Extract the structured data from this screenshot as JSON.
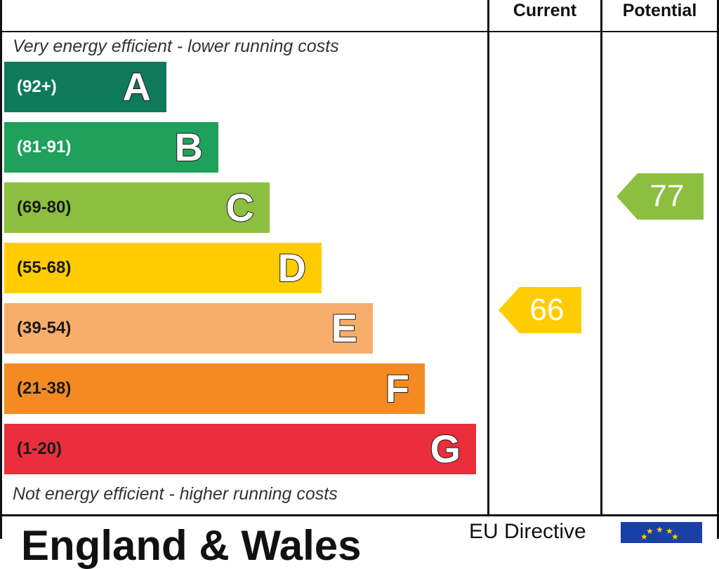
{
  "header": {
    "current_label": "Current",
    "potential_label": "Potential"
  },
  "captions": {
    "top": "Very energy efficient - lower running costs",
    "bottom": "Not energy efficient - higher running costs"
  },
  "chart_data": {
    "type": "bar",
    "categories": [
      "A",
      "B",
      "C",
      "D",
      "E",
      "F",
      "G"
    ],
    "ranges": [
      "(92+)",
      "(81-91)",
      "(69-80)",
      "(55-68)",
      "(39-54)",
      "(21-38)",
      "(1-20)"
    ],
    "colors": [
      "#0f7a5a",
      "#1fa05b",
      "#8cbf3f",
      "#ffcc00",
      "#f7ae6b",
      "#f38b22",
      "#ea2e3b"
    ],
    "range_text_colors": [
      "#ffffff",
      "#ffffff",
      "#1a1a1a",
      "#1a1a1a",
      "#1a1a1a",
      "#1a1a1a",
      "#1a1a1a"
    ],
    "current": {
      "value": 66,
      "band": "D",
      "color": "#ffcc00"
    },
    "potential": {
      "value": 77,
      "band": "C",
      "color": "#8cbf3f"
    }
  },
  "footer": {
    "region": "England & Wales",
    "directive": "EU Directive"
  }
}
